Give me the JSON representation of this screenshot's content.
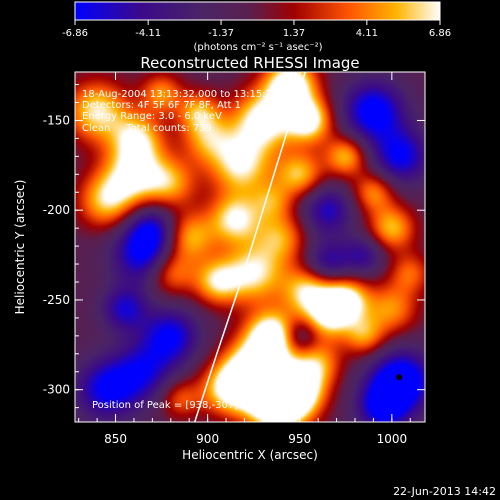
{
  "chart_data": {
    "type": "heatmap",
    "title": "Reconstructed RHESSI Image",
    "xlabel": "Heliocentric X (arcsec)",
    "ylabel": "Heliocentric Y (arcsec)",
    "xlim": [
      828,
      1018
    ],
    "ylim": [
      -318,
      -123
    ],
    "x_ticks": [
      850,
      900,
      950,
      1000
    ],
    "y_ticks": [
      -300,
      -250,
      -200,
      -150
    ],
    "colorbar": {
      "range": [
        -6.86,
        6.86
      ],
      "tick_labels": [
        "-6.86",
        "-4.11",
        "-1.37",
        "1.37",
        "4.11",
        "6.86"
      ],
      "units_text": "(photons cm⁻² s⁻¹ asec⁻²)",
      "colors": [
        "#0000ff",
        "#3a0a8a",
        "#4a2466",
        "#5a1f4d",
        "#a00000",
        "#ff5500",
        "#ffb400",
        "#ffffff"
      ]
    },
    "annotations": {
      "time": "18-Aug-2004 13:13:32.000 to 13:15:20.000",
      "detectors": "Detectors: 4F 5F 6F 7F 8F, Att 1",
      "energy": "Energy Range: 3.0 - 6.0 keV",
      "clean": "Clean     Total counts: 739.",
      "peak": "Position of Peak = [938,-307]"
    },
    "peak": [
      938,
      -307
    ],
    "limb_curve": [
      [
        893,
        -318
      ],
      [
        905,
        -280
      ],
      [
        918,
        -240
      ],
      [
        930,
        -200
      ],
      [
        942,
        -160
      ],
      [
        953,
        -123
      ]
    ],
    "blobs": [
      [
        840,
        -145,
        7,
        12
      ],
      [
        862,
        -160,
        6,
        10
      ],
      [
        875,
        -135,
        5,
        8
      ],
      [
        860,
        -180,
        7,
        12
      ],
      [
        845,
        -195,
        6,
        11
      ],
      [
        880,
        -185,
        5,
        10
      ],
      [
        890,
        -215,
        6,
        10
      ],
      [
        880,
        -235,
        5,
        9
      ],
      [
        865,
        -225,
        -6,
        12
      ],
      [
        900,
        -160,
        5,
        10
      ],
      [
        918,
        -175,
        7,
        12
      ],
      [
        915,
        -205,
        7,
        10
      ],
      [
        925,
        -235,
        7,
        12
      ],
      [
        905,
        -240,
        6,
        9
      ],
      [
        930,
        -150,
        8,
        12
      ],
      [
        945,
        -130,
        9,
        10
      ],
      [
        955,
        -150,
        8,
        9
      ],
      [
        950,
        -180,
        6,
        9
      ],
      [
        965,
        -200,
        -5,
        10
      ],
      [
        975,
        -170,
        6,
        8
      ],
      [
        990,
        -145,
        -7,
        12
      ],
      [
        1005,
        -170,
        -6,
        11
      ],
      [
        990,
        -190,
        5,
        8
      ],
      [
        1000,
        -210,
        6,
        9
      ],
      [
        985,
        -225,
        -4,
        8
      ],
      [
        955,
        -245,
        7,
        10
      ],
      [
        965,
        -260,
        6,
        9
      ],
      [
        975,
        -250,
        8,
        9
      ],
      [
        985,
        -270,
        5,
        8
      ],
      [
        1000,
        -255,
        5,
        10
      ],
      [
        935,
        -270,
        9,
        10
      ],
      [
        925,
        -290,
        10,
        12
      ],
      [
        938,
        -307,
        11,
        12
      ],
      [
        910,
        -300,
        6,
        10
      ],
      [
        950,
        -300,
        7,
        10
      ],
      [
        960,
        -285,
        5,
        9
      ],
      [
        880,
        -270,
        -6,
        11
      ],
      [
        865,
        -290,
        -5,
        12
      ],
      [
        845,
        -300,
        -6,
        12
      ],
      [
        855,
        -255,
        -5,
        9
      ],
      [
        885,
        -305,
        4,
        8
      ],
      [
        1005,
        -295,
        -8,
        12
      ],
      [
        995,
        -310,
        -6,
        10
      ],
      [
        870,
        -210,
        -5,
        10
      ],
      [
        965,
        -230,
        -5,
        9
      ],
      [
        940,
        -215,
        5,
        10
      ],
      [
        950,
        -270,
        -4,
        7
      ],
      [
        1010,
        -235,
        4,
        8
      ],
      [
        895,
        -145,
        5,
        8
      ],
      [
        935,
        -195,
        4,
        8
      ]
    ]
  },
  "footer": {
    "timestamp": "22-Jun-2013 14:42"
  }
}
